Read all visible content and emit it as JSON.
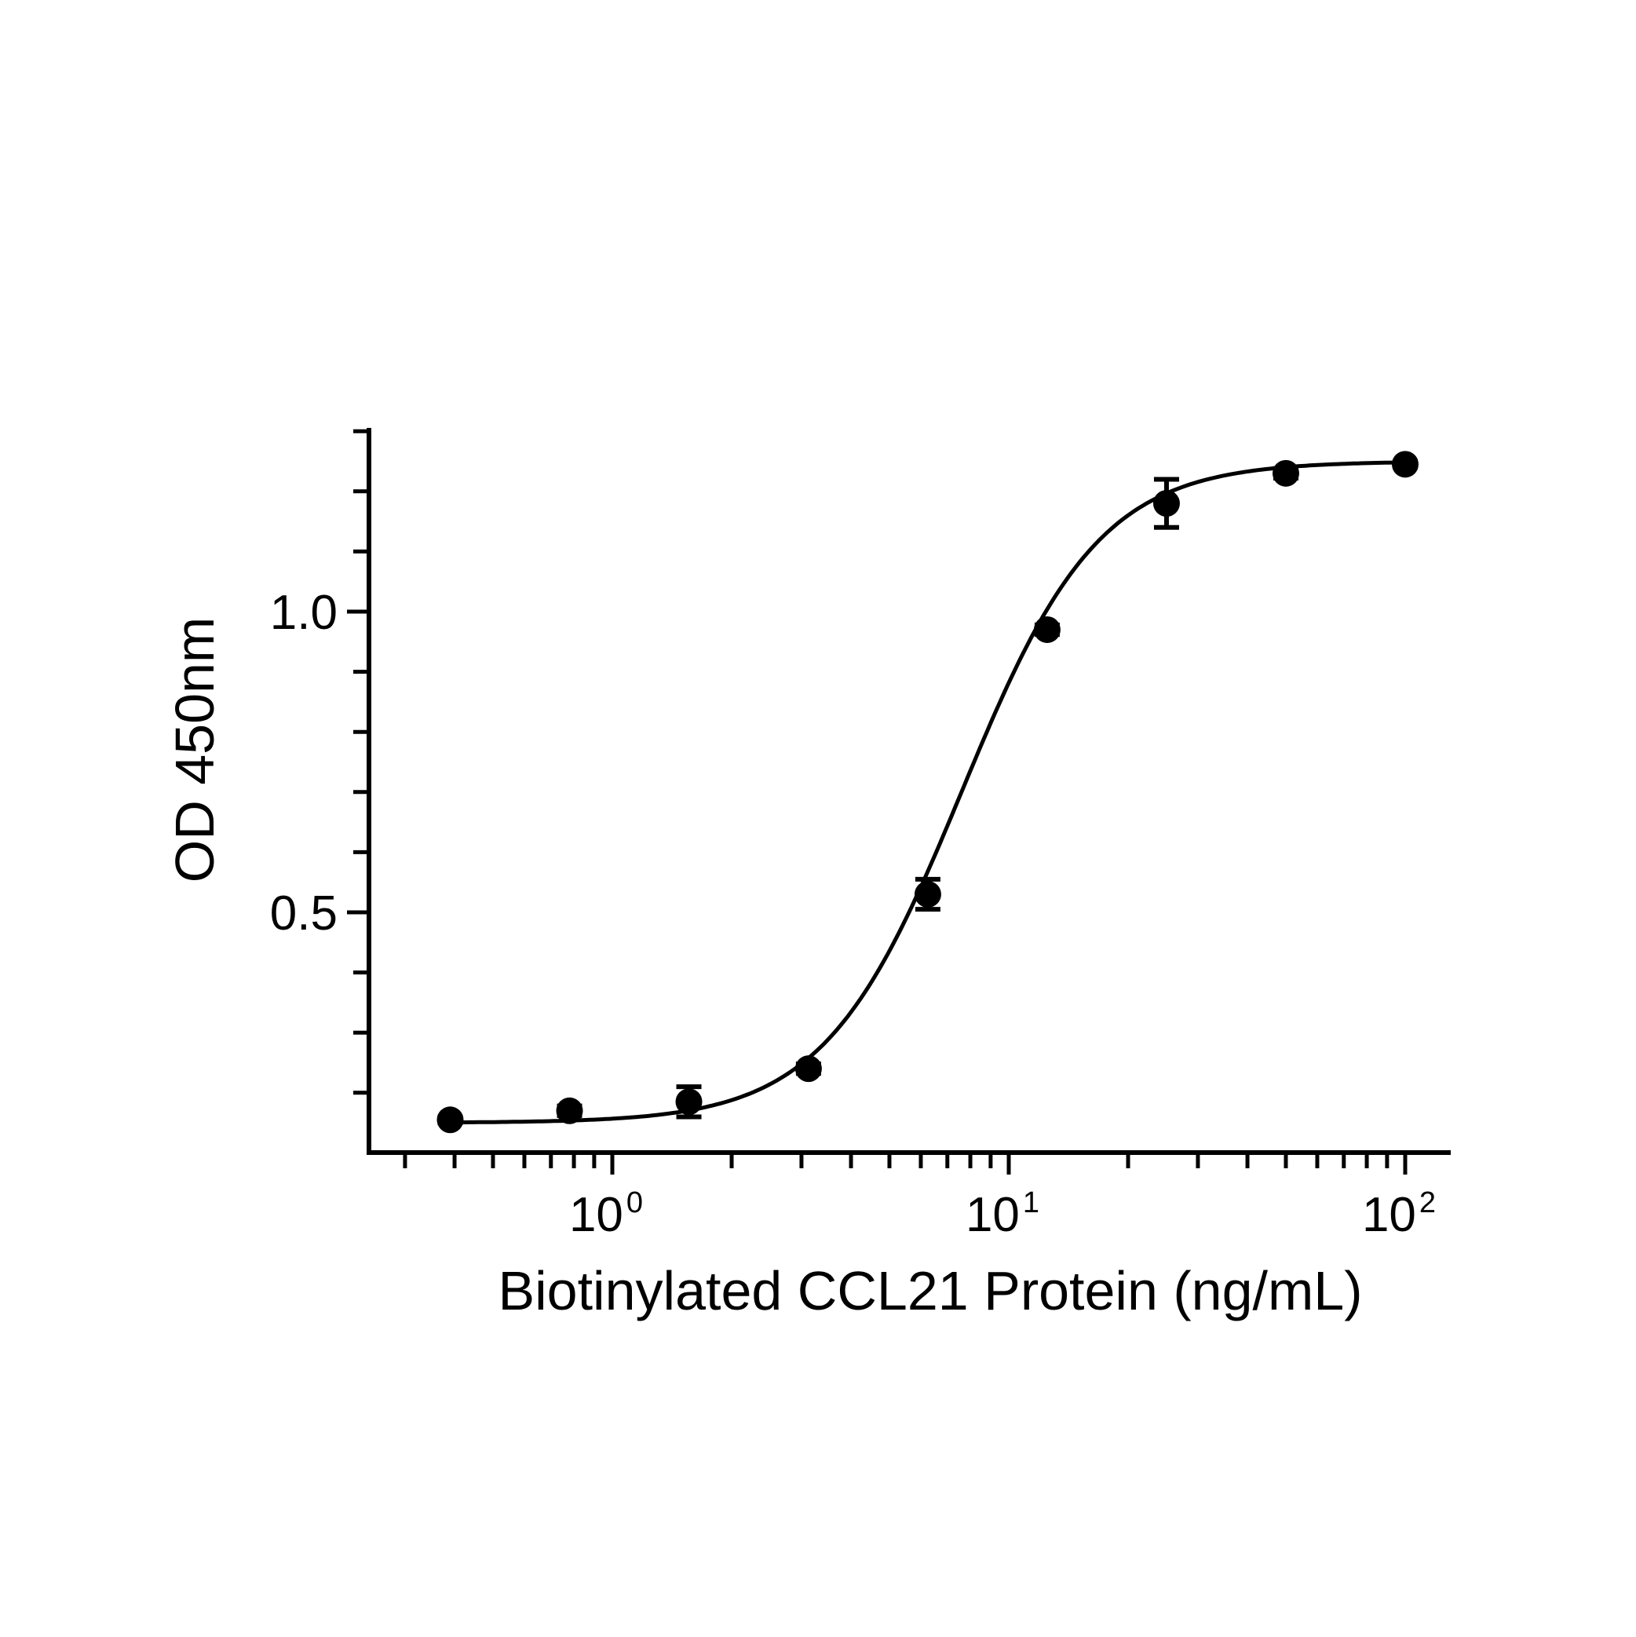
{
  "chart_data": {
    "type": "scatter",
    "title": "",
    "xlabel": "Biotinylated CCL21 Protein (ng/mL)",
    "ylabel": "OD 450nm",
    "x_scale": "log10",
    "xlim": [
      0.3,
      130
    ],
    "ylim": [
      0.1,
      1.3
    ],
    "x_ticks": [
      {
        "value": 1,
        "base": "10",
        "exp": "0"
      },
      {
        "value": 10,
        "base": "10",
        "exp": "1"
      },
      {
        "value": 100,
        "base": "10",
        "exp": "2"
      }
    ],
    "y_ticks": [
      {
        "value": 0.5,
        "label": "0.5"
      },
      {
        "value": 1.0,
        "label": "1.0"
      }
    ],
    "y_minor_step": 0.1,
    "grid": false,
    "legend": "none",
    "marker_color": "#000000",
    "series": [
      {
        "points": [
          {
            "x": 0.39,
            "y": 0.155,
            "err": 0.005
          },
          {
            "x": 0.78,
            "y": 0.17,
            "err": 0.008
          },
          {
            "x": 1.56,
            "y": 0.185,
            "err": 0.025
          },
          {
            "x": 3.125,
            "y": 0.24,
            "err": 0.008
          },
          {
            "x": 6.25,
            "y": 0.53,
            "err": 0.025
          },
          {
            "x": 12.5,
            "y": 0.97,
            "err": 0.008
          },
          {
            "x": 25,
            "y": 1.18,
            "err": 0.04
          },
          {
            "x": 50,
            "y": 1.23,
            "err": 0.008
          },
          {
            "x": 100,
            "y": 1.245,
            "err": 0.005
          }
        ]
      }
    ],
    "fit": {
      "model": "4PL",
      "bottom": 0.15,
      "top": 1.25,
      "ec50": 7.6,
      "hill": 2.5
    }
  }
}
